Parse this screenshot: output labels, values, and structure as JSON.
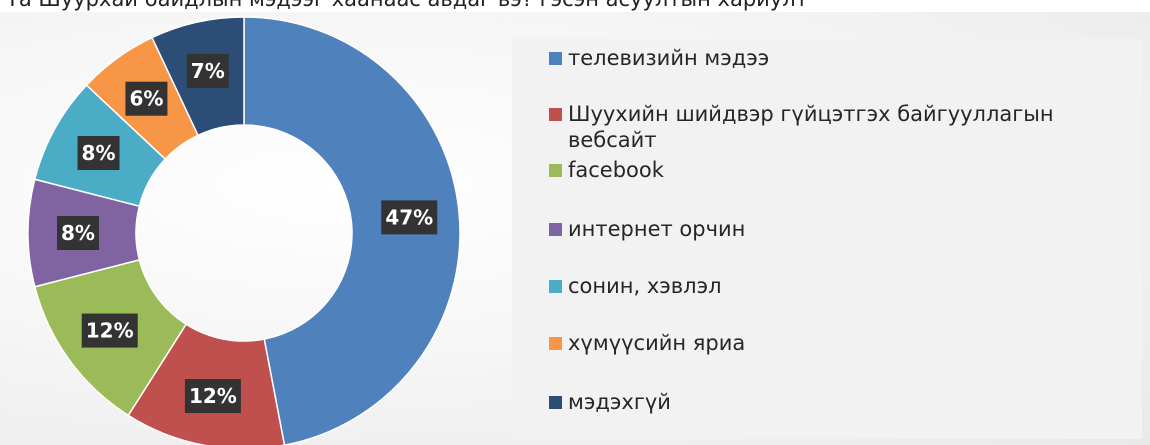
{
  "page": {
    "top_text": "Та Шуурхай байдлын мэдээг хаанаас авдаг вэ? гэсэн асуултын хариулт"
  },
  "chart_data": {
    "type": "pie",
    "donut": true,
    "title": "",
    "unit": "%",
    "categories": [
      "телевизийн мэдээ",
      "Шуухийн шийдвэр гүйцэтгэх байгууллагын вебсайт",
      "facebook",
      "интернет орчин",
      "сонин, хэвлэл",
      "хүмүүсийн яриа",
      "мэдэхгүй"
    ],
    "values": [
      47,
      12,
      12,
      8,
      8,
      6,
      7
    ],
    "data_labels": [
      "47%",
      "12%",
      "12%",
      "8%",
      "8%",
      "6%",
      "7%"
    ],
    "colors": [
      "#4f81bd",
      "#c0504d",
      "#9bbb59",
      "#8064a2",
      "#4bacc6",
      "#f79646",
      "#2c4d75"
    ],
    "legend": {
      "position": "right",
      "items": [
        "телевизийн мэдээ",
        "Шуухийн шийдвэр гүйцэтгэх байгууллагын вебсайт",
        "facebook",
        "интернет орчин",
        "сонин, хэвлэл",
        "хүмүүсийн яриа",
        "мэдэхгүй"
      ]
    }
  }
}
